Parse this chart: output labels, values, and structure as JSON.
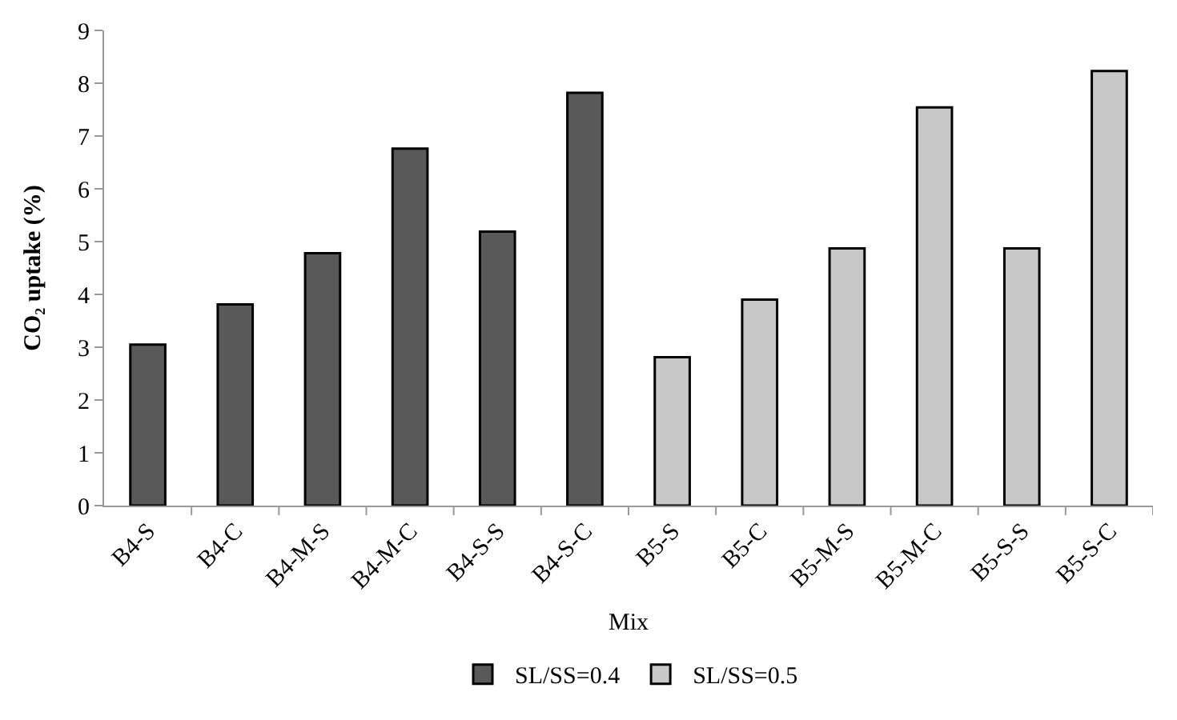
{
  "chart_data": {
    "type": "bar",
    "xlabel": "Mix",
    "ylabel": "CO₂ uptake (%)",
    "categories": [
      "B4-S",
      "B4-C",
      "B4-M-S",
      "B4-M-C",
      "B4-S-S",
      "B4-S-C",
      "B5-S",
      "B5-C",
      "B5-M-S",
      "B5-M-C",
      "B5-S-S",
      "B5-S-C"
    ],
    "series": [
      {
        "name": "SL/SS=0.4",
        "color": "#595959",
        "values": [
          3.05,
          3.81,
          4.78,
          6.76,
          5.19,
          7.82,
          null,
          null,
          null,
          null,
          null,
          null
        ]
      },
      {
        "name": "SL/SS=0.5",
        "color": "#c8c8c8",
        "values": [
          null,
          null,
          null,
          null,
          null,
          null,
          2.81,
          3.9,
          4.87,
          7.54,
          4.87,
          8.23
        ]
      }
    ],
    "ylim": [
      0,
      9
    ],
    "yticks": [
      0,
      1,
      2,
      3,
      4,
      5,
      6,
      7,
      8,
      9
    ],
    "grid": false,
    "legend": "bottom"
  }
}
